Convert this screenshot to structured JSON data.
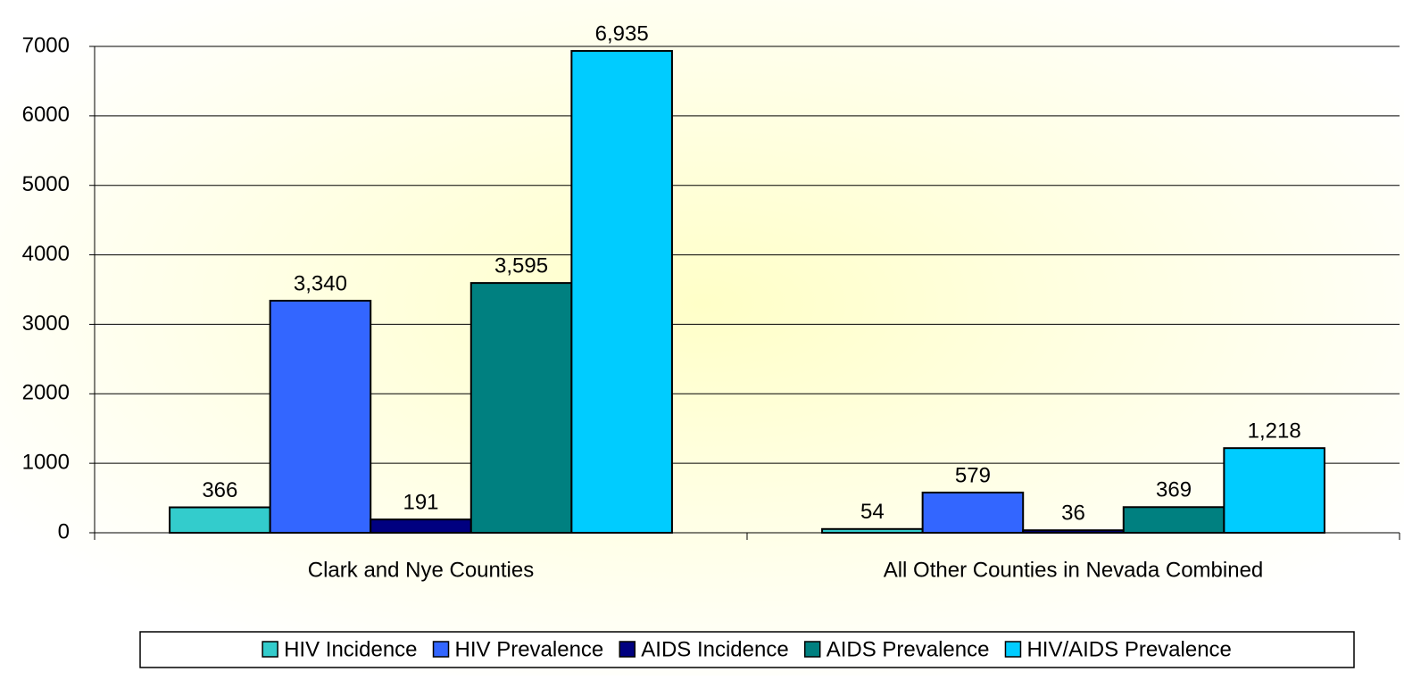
{
  "chart_data": {
    "type": "bar",
    "categories": [
      "Clark and Nye Counties",
      "All Other Counties in Nevada Combined"
    ],
    "series": [
      {
        "name": "HIV Incidence",
        "color": "#33CCCC",
        "values": [
          366,
          54
        ],
        "value_labels": [
          "366",
          "54"
        ]
      },
      {
        "name": "HIV Prevalence",
        "color": "#3366FF",
        "values": [
          3340,
          579
        ],
        "value_labels": [
          "3,340",
          "579"
        ]
      },
      {
        "name": "AIDS Incidence",
        "color": "#000080",
        "values": [
          191,
          36
        ],
        "value_labels": [
          "191",
          "36"
        ]
      },
      {
        "name": "AIDS Prevalence",
        "color": "#008080",
        "values": [
          3595,
          369
        ],
        "value_labels": [
          "3,595",
          "369"
        ]
      },
      {
        "name": "HIV/AIDS Prevalence",
        "color": "#00CCFF",
        "values": [
          6935,
          1218
        ],
        "value_labels": [
          "6,935",
          "1,218"
        ]
      }
    ],
    "ylim": [
      0,
      7000
    ],
    "yticks": [
      0,
      1000,
      2000,
      3000,
      4000,
      5000,
      6000,
      7000
    ],
    "grid": true,
    "legend": "bottom"
  }
}
